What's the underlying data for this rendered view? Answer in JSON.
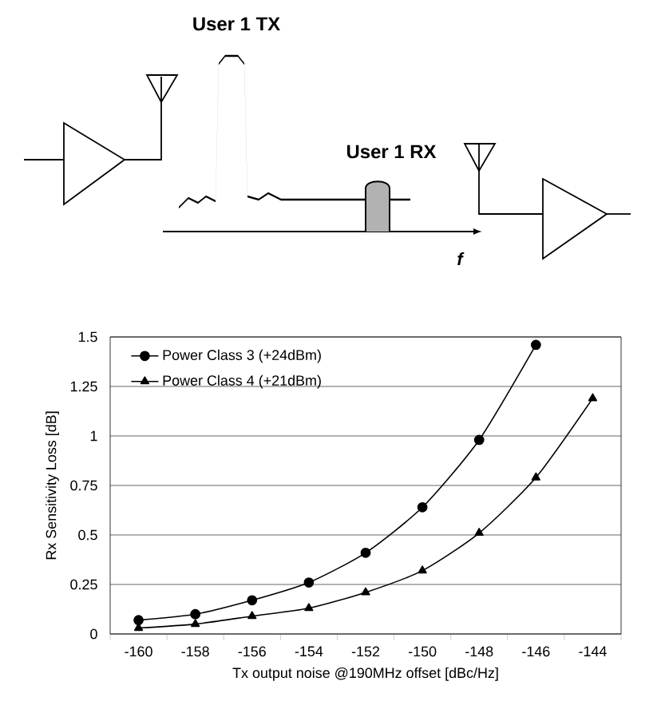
{
  "chart_data": {
    "type": "line",
    "categories": [
      "-160",
      "-158",
      "-156",
      "-154",
      "-152",
      "-150",
      "-148",
      "-146",
      "-144"
    ],
    "series": [
      {
        "name": "Power Class 3 (+24dBm)",
        "color": "#000000",
        "marker": "circle",
        "values": [
          0.07,
          0.1,
          0.17,
          0.26,
          0.41,
          0.64,
          0.98,
          1.46,
          null
        ]
      },
      {
        "name": "Power Class 4 (+21dBm)",
        "color": "#000000",
        "marker": "triangle",
        "values": [
          0.03,
          0.05,
          0.09,
          0.13,
          0.21,
          0.32,
          0.51,
          0.79,
          1.19
        ]
      }
    ],
    "xlabel": "Tx output noise @190MHz offset [dBc/Hz]",
    "ylabel": "Rx Sensitivity Loss [dB]",
    "ylim": [
      0,
      1.5
    ],
    "yticks": [
      0,
      0.25,
      0.5,
      0.75,
      1,
      1.25,
      1.5
    ],
    "grid": "y",
    "legend": "top left",
    "line_style": "solid",
    "annotations": [
      "User 1 TX",
      "User 1 RX",
      "f"
    ]
  }
}
